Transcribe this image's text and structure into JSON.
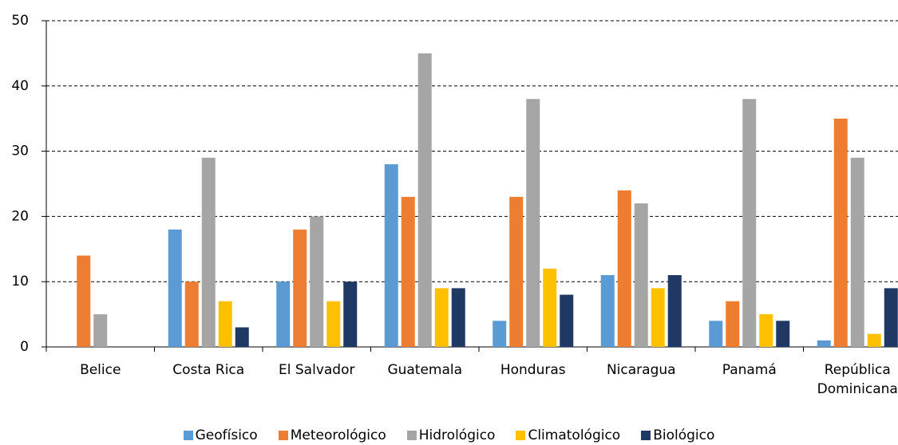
{
  "chart_data": {
    "type": "bar",
    "categories": [
      "Belice",
      "Costa Rica",
      "El Salvador",
      "Guatemala",
      "Honduras",
      "Nicaragua",
      "Panamá",
      "República Dominicana"
    ],
    "series": [
      {
        "name": "Geofísico",
        "color": "#5b9bd5",
        "values": [
          0,
          18,
          10,
          28,
          4,
          11,
          4,
          1
        ]
      },
      {
        "name": "Meteorológico",
        "color": "#ed7d31",
        "values": [
          14,
          10,
          18,
          23,
          23,
          24,
          7,
          35
        ]
      },
      {
        "name": "Hidrológico",
        "color": "#a5a5a5",
        "values": [
          5,
          29,
          20,
          45,
          38,
          22,
          38,
          29
        ]
      },
      {
        "name": "Climatológico",
        "color": "#ffc000",
        "values": [
          0,
          7,
          7,
          9,
          12,
          9,
          5,
          2
        ]
      },
      {
        "name": "Biológico",
        "color": "#203864",
        "values": [
          0,
          3,
          10,
          9,
          8,
          11,
          4,
          9
        ]
      }
    ],
    "ylim": [
      0,
      50
    ],
    "yticks": [
      0,
      10,
      20,
      30,
      40,
      50
    ],
    "grid": true,
    "legend": "bottom"
  }
}
